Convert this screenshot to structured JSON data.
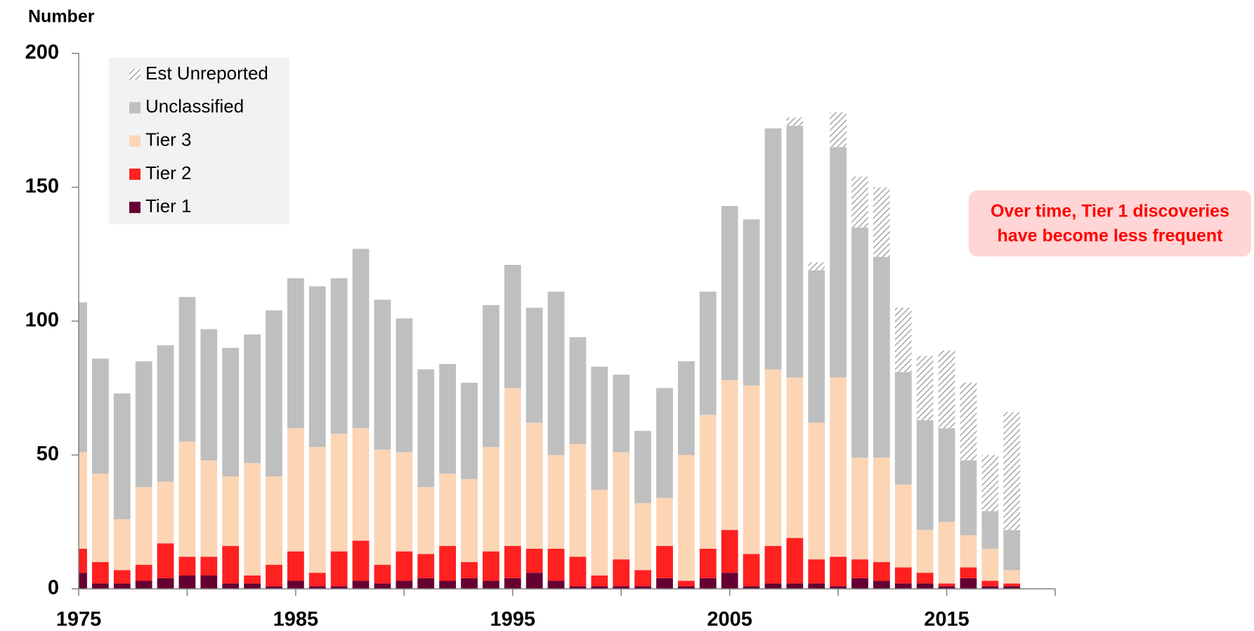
{
  "chart_data": {
    "type": "stacked_bar",
    "y_label": "Number",
    "x": [
      1975,
      1976,
      1977,
      1978,
      1979,
      1980,
      1981,
      1982,
      1983,
      1984,
      1985,
      1986,
      1987,
      1988,
      1989,
      1990,
      1991,
      1992,
      1993,
      1994,
      1995,
      1996,
      1997,
      1998,
      1999,
      2000,
      2001,
      2002,
      2003,
      2004,
      2005,
      2006,
      2007,
      2008,
      2009,
      2010,
      2011,
      2012,
      2013,
      2014,
      2015,
      2016,
      2017,
      2018
    ],
    "series": [
      {
        "name": "Tier 1",
        "color": "#660033",
        "values": [
          6,
          2,
          2,
          3,
          4,
          5,
          5,
          2,
          2,
          1,
          3,
          1,
          1,
          3,
          2,
          3,
          4,
          3,
          4,
          3,
          4,
          6,
          3,
          1,
          1,
          1,
          1,
          4,
          1,
          4,
          6,
          1,
          2,
          2,
          2,
          1,
          4,
          3,
          2,
          2,
          1,
          4,
          1,
          1
        ]
      },
      {
        "name": "Tier 2",
        "color": "#ff2020",
        "values": [
          9,
          8,
          5,
          6,
          13,
          7,
          7,
          14,
          3,
          8,
          11,
          5,
          13,
          15,
          7,
          11,
          9,
          13,
          6,
          11,
          12,
          9,
          12,
          11,
          4,
          10,
          6,
          12,
          2,
          11,
          16,
          12,
          14,
          17,
          9,
          11,
          7,
          7,
          6,
          4,
          1,
          4,
          2,
          1
        ]
      },
      {
        "name": "Tier 3",
        "color": "#fcd5b5",
        "values": [
          36,
          33,
          19,
          29,
          23,
          43,
          36,
          26,
          42,
          33,
          46,
          47,
          44,
          42,
          43,
          37,
          25,
          27,
          31,
          39,
          59,
          47,
          35,
          42,
          32,
          40,
          25,
          18,
          47,
          50,
          56,
          63,
          66,
          60,
          51,
          67,
          38,
          39,
          31,
          16,
          23,
          12,
          12,
          5
        ]
      },
      {
        "name": "Unclassified",
        "color": "#bfbfbf",
        "values": [
          56,
          43,
          47,
          47,
          51,
          54,
          49,
          48,
          48,
          62,
          56,
          60,
          58,
          67,
          56,
          50,
          44,
          41,
          36,
          53,
          46,
          43,
          61,
          40,
          46,
          29,
          27,
          41,
          35,
          46,
          65,
          62,
          90,
          94,
          57,
          86,
          86,
          75,
          42,
          41,
          35,
          28,
          14,
          15
        ]
      },
      {
        "name": "Est Unreported",
        "color": "#a6a6a6",
        "hatch": true,
        "values": [
          0,
          0,
          0,
          0,
          0,
          0,
          0,
          0,
          0,
          0,
          0,
          0,
          0,
          0,
          0,
          0,
          0,
          0,
          0,
          0,
          0,
          0,
          0,
          0,
          0,
          0,
          0,
          0,
          0,
          0,
          0,
          0,
          0,
          3,
          3,
          13,
          19,
          26,
          24,
          24,
          29,
          29,
          21,
          44
        ]
      }
    ],
    "xlim": [
      1975,
      2020
    ],
    "xticks": [
      1975,
      1985,
      1995,
      2005,
      2015
    ],
    "xminorticks": [
      1980,
      1990,
      2000,
      2010,
      2020
    ],
    "ylim": [
      0,
      200
    ],
    "yticks": [
      0,
      50,
      100,
      150,
      200
    ],
    "legend": "top-left",
    "annotation": {
      "lines": [
        "Over time, Tier 1 discoveries",
        "have become less frequent"
      ],
      "color": "#ff0000",
      "background": "#ffd5d5"
    }
  }
}
